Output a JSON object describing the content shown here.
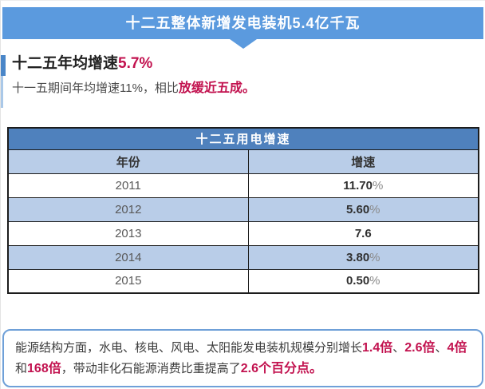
{
  "banner": {
    "title": "十二五整体新增发电装机5.4亿千瓦"
  },
  "intro": {
    "heading_prefix": "十二五年均增速",
    "heading_value": "5.7%",
    "body_prefix": "十一五期间年均增速11%，相比",
    "body_highlight": "放缓近五成",
    "body_suffix": "。"
  },
  "table": {
    "title": "十二五用电增速",
    "columns": {
      "year": "年份",
      "rate": "增速"
    },
    "rows": [
      {
        "year": "2011",
        "rate": "11.70",
        "unit": "%"
      },
      {
        "year": "2012",
        "rate": "5.60",
        "unit": "%"
      },
      {
        "year": "2013",
        "rate": "7.6",
        "unit": ""
      },
      {
        "year": "2014",
        "rate": "3.80",
        "unit": "%"
      },
      {
        "year": "2015",
        "rate": "0.50",
        "unit": "%"
      }
    ]
  },
  "footer": {
    "segments": [
      {
        "text": "能源结构方面，水电、核电、风电、太阳能发电装机规模分别增长",
        "highlight": false
      },
      {
        "text": "1.4倍",
        "highlight": true
      },
      {
        "text": "、",
        "highlight": false
      },
      {
        "text": "2.6倍",
        "highlight": true
      },
      {
        "text": "、",
        "highlight": false
      },
      {
        "text": "4倍",
        "highlight": true
      },
      {
        "text": "和",
        "highlight": false
      },
      {
        "text": "168倍",
        "highlight": true
      },
      {
        "text": "，带动非化石能源消费比重提高了",
        "highlight": false
      },
      {
        "text": "2.6个百分点",
        "highlight": true
      },
      {
        "text": "。",
        "highlight": true
      }
    ]
  },
  "colors": {
    "banner_blue": "#5b9ade",
    "table_title_blue": "#4f81bd",
    "row_light_blue": "#b9cde8",
    "highlight_red": "#c2124f",
    "note_border_blue": "#6fa0d8"
  },
  "chart_data": {
    "type": "table",
    "title": "十二五用电增速",
    "columns": [
      "年份",
      "增速"
    ],
    "rows": [
      [
        "2011",
        "11.70%"
      ],
      [
        "2012",
        "5.60%"
      ],
      [
        "2013",
        "7.6"
      ],
      [
        "2014",
        "3.80%"
      ],
      [
        "2015",
        "0.50%"
      ]
    ]
  }
}
